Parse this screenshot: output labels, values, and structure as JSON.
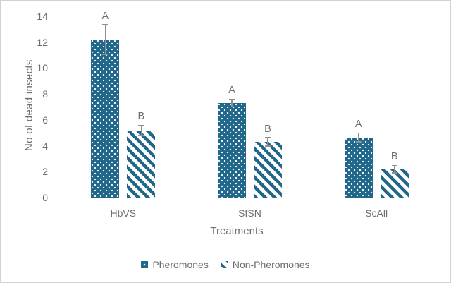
{
  "chart_data": {
    "type": "bar",
    "title": "",
    "categories": [
      "HbVS",
      "SfSN",
      "ScAll"
    ],
    "series": [
      {
        "name": "Pheromones",
        "pattern": "dots",
        "values": [
          12.2,
          7.3,
          4.65
        ],
        "errors": [
          1.15,
          0.3,
          0.35
        ],
        "sig_letters": [
          "A",
          "A",
          "A"
        ]
      },
      {
        "name": "Non-Pheromones",
        "pattern": "diagonal-stripes",
        "values": [
          5.2,
          4.3,
          2.2
        ],
        "errors": [
          0.4,
          0.35,
          0.3
        ],
        "sig_letters": [
          "B",
          "B",
          "B"
        ]
      }
    ],
    "xlabel": "Treatments",
    "ylabel": "No of dead insects",
    "ylim": [
      0,
      14
    ],
    "ytick_step": 2,
    "grid": false,
    "legend_position": "bottom"
  },
  "colors": {
    "bar": "#20678a",
    "text": "#6e6e6e",
    "axis_line": "#d9d9d9",
    "error_bar": "#8f8f8f",
    "frame_border": "#d2d2d2",
    "background": "#ffffff"
  }
}
